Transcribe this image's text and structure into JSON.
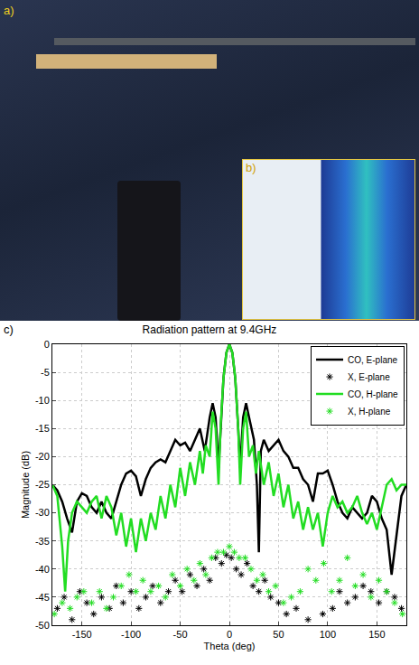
{
  "panel_labels": [
    "a)",
    "b)",
    "c)"
  ],
  "chart_data": {
    "type": "line",
    "title": "Radiation pattern at 9.4GHz",
    "x_label": "Theta (deg)",
    "y_label": "Magnitude (dB)",
    "xlim": [
      -180,
      180
    ],
    "xticks": [
      -150,
      -100,
      -50,
      0,
      50,
      100,
      150
    ],
    "ylim": [
      -50,
      0
    ],
    "yticks": [
      -50,
      -45,
      -40,
      -35,
      -30,
      -25,
      -20,
      -15,
      -10,
      -5,
      0
    ],
    "grid": true,
    "legend": "top right",
    "series": [
      {
        "name": "CO, E-plane",
        "color": "#000000",
        "type": "line",
        "line_style": "solid",
        "x": [
          -180,
          -175,
          -170,
          -165,
          -160,
          -155,
          -150,
          -145,
          -140,
          -135,
          -130,
          -125,
          -120,
          -115,
          -110,
          -105,
          -100,
          -95,
          -90,
          -85,
          -80,
          -75,
          -70,
          -65,
          -60,
          -55,
          -50,
          -45,
          -40,
          -35,
          -30,
          -25,
          -20,
          -17,
          -14,
          -11,
          -9,
          -6,
          -3,
          0,
          3,
          6,
          9,
          11,
          14,
          17,
          20,
          25,
          28,
          30,
          32,
          35,
          40,
          45,
          50,
          55,
          60,
          65,
          70,
          75,
          80,
          85,
          90,
          95,
          100,
          105,
          110,
          115,
          120,
          125,
          130,
          135,
          140,
          145,
          150,
          155,
          160,
          165,
          170,
          175,
          180
        ],
        "values": [
          -25,
          -26,
          -28,
          -31,
          -33.5,
          -28,
          -26.5,
          -27,
          -29,
          -30,
          -28,
          -30,
          -31,
          -28,
          -25,
          -23,
          -22.5,
          -23.5,
          -27,
          -24,
          -22,
          -21,
          -20.5,
          -21,
          -19,
          -17,
          -18,
          -17.5,
          -19,
          -17,
          -15,
          -19,
          -13,
          -10.5,
          -13,
          -22,
          -15,
          -6,
          -1.5,
          0,
          -1.5,
          -6,
          -15,
          -22,
          -13,
          -10.5,
          -13,
          -17,
          -25,
          -37,
          -19,
          -17,
          -19,
          -18,
          -17,
          -19,
          -20,
          -22,
          -22,
          -24,
          -25,
          -28,
          -23,
          -23,
          -22.5,
          -25,
          -28,
          -30,
          -31,
          -29,
          -30,
          -31,
          -30,
          -27,
          -28,
          -31,
          -33,
          -41,
          -34,
          -27,
          -25
        ]
      },
      {
        "name": "X, E-plane",
        "color": "#000000",
        "type": "scatter",
        "marker": "asterisk",
        "x": [
          -175,
          -168,
          -160,
          -152,
          -145,
          -138,
          -130,
          -122,
          -115,
          -108,
          -100,
          -92,
          -85,
          -78,
          -70,
          -62,
          -55,
          -48,
          -40,
          -33,
          -26,
          -20,
          -14,
          -8,
          -3,
          2,
          7,
          12,
          18,
          24,
          30,
          36,
          42,
          50,
          58,
          68,
          80,
          95,
          105,
          112,
          120,
          128,
          136,
          144,
          152,
          160,
          168,
          175
        ],
        "values": [
          -47,
          -45,
          -49,
          -44,
          -46,
          -48,
          -45,
          -47,
          -43,
          -46,
          -44,
          -47,
          -45,
          -43,
          -46,
          -44,
          -42,
          -44,
          -41,
          -43,
          -40,
          -42,
          -38,
          -39,
          -37.5,
          -38,
          -40,
          -41,
          -39,
          -43,
          -44,
          -42,
          -45,
          -46,
          -48,
          -47,
          -49,
          -48,
          -47,
          -44,
          -46,
          -45,
          -43,
          -44,
          -46,
          -44,
          -45,
          -47
        ]
      },
      {
        "name": "CO, H-plane",
        "color": "#22dd22",
        "type": "line",
        "line_style": "solid",
        "x": [
          -180,
          -175,
          -170,
          -167,
          -164,
          -160,
          -155,
          -150,
          -145,
          -140,
          -135,
          -130,
          -125,
          -120,
          -115,
          -110,
          -105,
          -100,
          -95,
          -90,
          -85,
          -80,
          -75,
          -70,
          -65,
          -60,
          -55,
          -50,
          -45,
          -40,
          -35,
          -30,
          -27,
          -24,
          -20,
          -17,
          -14,
          -11,
          -9,
          -6,
          -3,
          0,
          3,
          6,
          9,
          11,
          14,
          17,
          20,
          24,
          27,
          30,
          35,
          40,
          45,
          50,
          55,
          60,
          65,
          70,
          75,
          80,
          85,
          90,
          95,
          100,
          105,
          110,
          115,
          120,
          125,
          130,
          135,
          140,
          145,
          150,
          155,
          160,
          165,
          170,
          175,
          180
        ],
        "values": [
          -25,
          -27,
          -36,
          -44,
          -35,
          -30,
          -28,
          -29,
          -30,
          -28,
          -27,
          -31,
          -27,
          -29,
          -34,
          -30,
          -36,
          -31,
          -37,
          -31,
          -35,
          -30,
          -33,
          -27,
          -31,
          -25,
          -29,
          -22,
          -27,
          -21,
          -25,
          -19,
          -23,
          -18,
          -20,
          -12,
          -15,
          -25,
          -15,
          -6,
          -1.5,
          0,
          -1.5,
          -6,
          -15,
          -25,
          -15,
          -12,
          -20,
          -18,
          -23,
          -19,
          -25,
          -21,
          -27,
          -23,
          -29,
          -25,
          -31,
          -28,
          -33,
          -29,
          -33,
          -30,
          -36,
          -30,
          -27,
          -29,
          -28,
          -30,
          -29,
          -27,
          -30,
          -32,
          -30,
          -33,
          -29,
          -25,
          -24,
          -26,
          -25,
          -25
        ]
      },
      {
        "name": "X, H-plane",
        "color": "#22dd22",
        "type": "scatter",
        "marker": "asterisk",
        "x": [
          -178,
          -170,
          -162,
          -155,
          -148,
          -140,
          -132,
          -125,
          -118,
          -110,
          -102,
          -95,
          -88,
          -80,
          -72,
          -65,
          -58,
          -50,
          -43,
          -36,
          -30,
          -24,
          -18,
          -12,
          -6,
          0,
          5,
          10,
          16,
          22,
          28,
          34,
          40,
          47,
          55,
          63,
          72,
          80,
          88,
          96,
          104,
          112,
          120,
          128,
          136,
          144,
          152,
          160,
          168,
          176
        ],
        "values": [
          -48,
          -46,
          -47,
          -45,
          -44,
          -46,
          -44,
          -47,
          -45,
          -43,
          -41,
          -44,
          -42,
          -44,
          -43,
          -45,
          -41,
          -43,
          -40,
          -42,
          -39,
          -41,
          -38,
          -37,
          -37,
          -36,
          -37,
          -38,
          -38,
          -40,
          -42,
          -41,
          -44,
          -43,
          -46,
          -45,
          -44,
          -40,
          -42,
          -39,
          -44,
          -42,
          -38,
          -43,
          -41,
          -45,
          -42,
          -44,
          -46,
          -48
        ]
      }
    ]
  }
}
